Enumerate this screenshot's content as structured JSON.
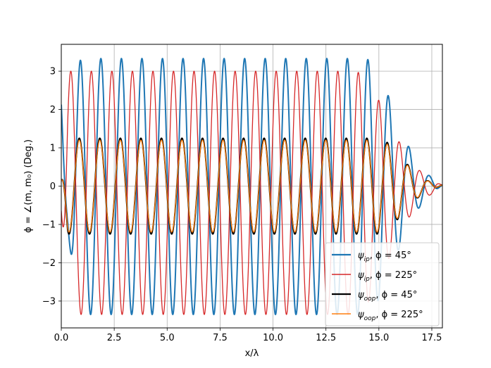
{
  "chart_data": {
    "type": "line",
    "title": "",
    "xlabel": "x/λ",
    "ylabel": "ϕ = ∠(m, m₀) (Deg.)",
    "xlim": [
      0,
      18
    ],
    "ylim": [
      -3.7,
      3.7
    ],
    "xticks": [
      0,
      2.5,
      5,
      7.5,
      10,
      12.5,
      15,
      17.5
    ],
    "xtick_labels": [
      "0.0",
      "2.5",
      "5.0",
      "7.5",
      "10.0",
      "12.5",
      "15.0",
      "17.5"
    ],
    "yticks": [
      -3,
      -2,
      -1,
      0,
      1,
      2,
      3
    ],
    "ytick_labels": [
      "−3",
      "−2",
      "−1",
      "0",
      "1",
      "2",
      "3"
    ],
    "grid": true,
    "legend_position": "lower-right",
    "series": [
      {
        "name": "ψ_ip, ϕ = 45°",
        "legend_main": "ψ",
        "legend_sub": "ip",
        "legend_rest": ", ϕ = 45°",
        "color": "#1f77b4",
        "period": 0.97,
        "phase_x": 0.9,
        "max": 3.33,
        "min": -3.35,
        "decay_start": 14.3,
        "decay_end": 18,
        "end_value": 0.03,
        "wavy_start": true,
        "points_sample": [
          [
            0.9,
            3.33
          ],
          [
            1.4,
            -3.35
          ],
          [
            5.0,
            3.33
          ],
          [
            10.0,
            3.25
          ],
          [
            13.5,
            3.0
          ],
          [
            15.0,
            2.35
          ],
          [
            15.9,
            1.4
          ],
          [
            16.8,
            0.48
          ],
          [
            17.5,
            0.22
          ],
          [
            18.0,
            0.03
          ]
        ]
      },
      {
        "name": "ψ_ip, ϕ = 225°",
        "legend_main": "ψ",
        "legend_sub": "ip",
        "legend_rest": ", ϕ = 225°",
        "color": "#d62728",
        "period": 0.97,
        "phase_x": 0.45,
        "max": 3.0,
        "min": -3.35,
        "decay_start": 13.8,
        "decay_end": 18,
        "end_value": 0.03,
        "wavy_start": false,
        "points_sample": [
          [
            0.45,
            3.0
          ],
          [
            0.95,
            -3.35
          ],
          [
            5.0,
            3.0
          ],
          [
            10.0,
            2.95
          ],
          [
            14.0,
            2.8
          ],
          [
            15.5,
            2.0
          ],
          [
            16.4,
            1.1
          ],
          [
            17.0,
            0.35
          ],
          [
            18.0,
            0.03
          ]
        ]
      },
      {
        "name": "ψ_oop, ϕ = 45°",
        "legend_main": "ψ",
        "legend_sub": "oop",
        "legend_rest": ", ϕ = 45°",
        "color": "#000000",
        "period": 0.97,
        "phase_x": 0.85,
        "max": 1.25,
        "min": -1.25,
        "decay_start": 14.9,
        "decay_end": 18,
        "end_value": 0.03,
        "wavy_start": false,
        "points_sample": [
          [
            0.85,
            1.25
          ],
          [
            1.33,
            -1.25
          ],
          [
            5.0,
            1.25
          ],
          [
            10.0,
            1.25
          ],
          [
            15.0,
            1.0
          ],
          [
            16.0,
            0.6
          ],
          [
            17.0,
            0.25
          ],
          [
            18.0,
            0.03
          ]
        ]
      },
      {
        "name": "ψ_oop, ϕ = 225°",
        "legend_main": "ψ",
        "legend_sub": "oop",
        "legend_rest": ", ϕ = 225°",
        "color": "#ff7f0e",
        "period": 0.97,
        "phase_x": 0.85,
        "max": 1.2,
        "min": -1.2,
        "decay_start": 14.9,
        "decay_end": 18,
        "end_value": 0.03,
        "wavy_start": false,
        "points_sample": [
          [
            0.85,
            1.2
          ],
          [
            1.33,
            -1.2
          ],
          [
            5.0,
            1.2
          ],
          [
            10.0,
            1.2
          ],
          [
            15.0,
            0.95
          ],
          [
            16.0,
            0.57
          ],
          [
            17.0,
            0.22
          ],
          [
            18.0,
            0.03
          ]
        ]
      }
    ]
  }
}
